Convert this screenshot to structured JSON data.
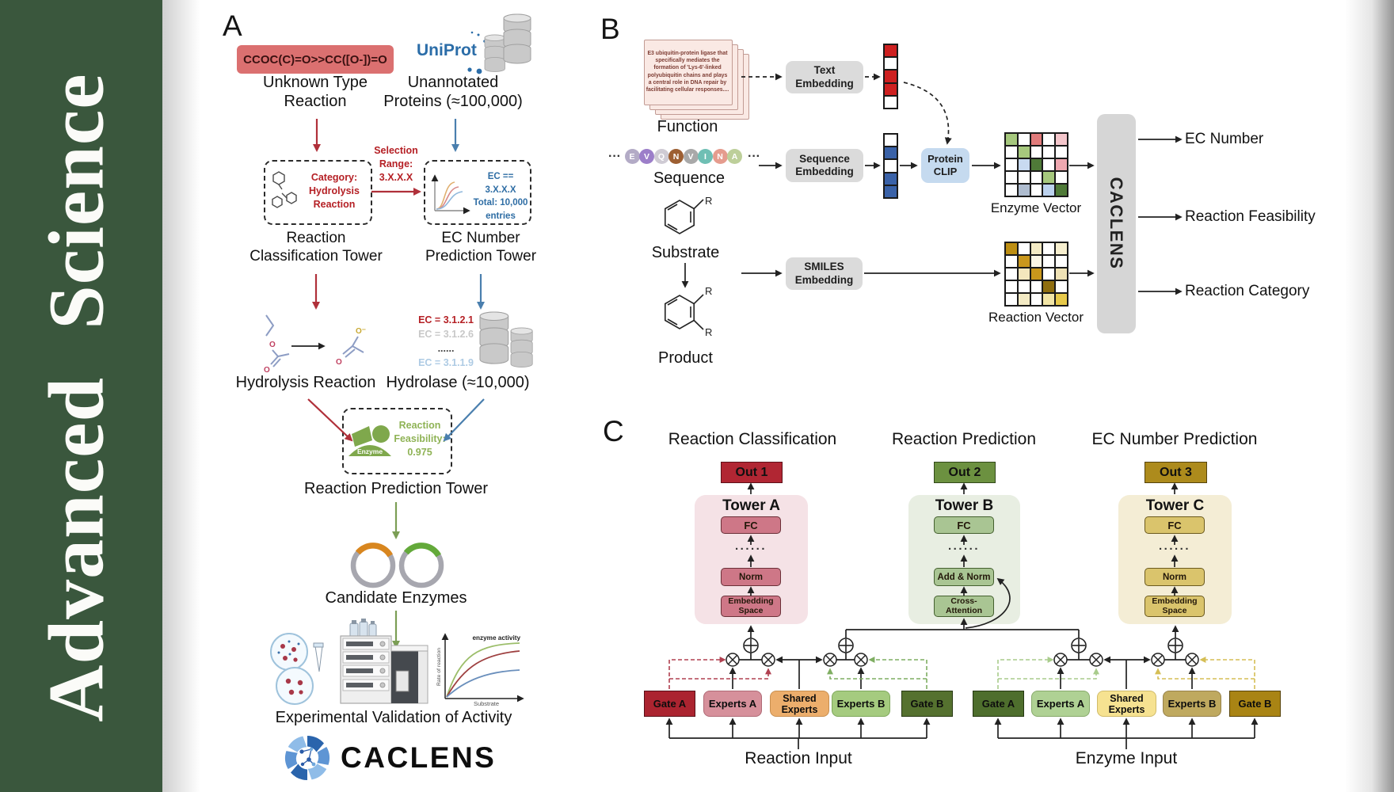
{
  "journal": {
    "word1": "Advanced",
    "word2": "Science"
  },
  "colors": {
    "sidebar_green": "#3A573D",
    "red_accent": "#B52025",
    "blue_accent": "#2E6DA4",
    "green_accent": "#7FA84C"
  },
  "panelA": {
    "label": "A",
    "smiles": "CCOC(C)=O>>CC([O-])=O",
    "uniprot": "UniProt",
    "unknown_line1": "Unknown Type",
    "unknown_line2": "Reaction",
    "unannotated_line1": "Unannotated",
    "unannotated_line2": "Proteins (≈100,000)",
    "category_line1": "Category:",
    "category_line2": "Hydrolysis",
    "category_line3": "Reaction",
    "selection_line1": "Selection",
    "selection_line2": "Range:",
    "selection_line3": "3.X.X.X",
    "ec_line1": "EC == 3.X.X.X",
    "ec_line2": "Total: 10,000",
    "ec_line3": "entries",
    "tower1_line1": "Reaction",
    "tower1_line2": "Classification Tower",
    "tower2_line1": "EC Number",
    "tower2_line2": "Prediction Tower",
    "hydrolysis_label": "Hydrolysis Reaction",
    "ec_list": [
      "EC = 3.1.2.1",
      "EC = 3.1.2.6",
      "......",
      "EC = 3.1.1.9"
    ],
    "hydrolase_label": "Hydrolase (≈10,000)",
    "enzyme_label": "Enzyme",
    "feasibility_line1": "Reaction",
    "feasibility_line2": "Feasibility:",
    "feasibility_line3": "0.975",
    "tower3_label": "Reaction Prediction Tower",
    "candidates_label": "Candidate Enzymes",
    "activity_chart": {
      "type": "line",
      "ylabel": "Rate of reaction",
      "xlabel": "Substrate",
      "annotation": "enzyme activity",
      "series": [
        "green-high",
        "darkred-medium",
        "blue-low"
      ]
    },
    "validation_label": "Experimental Validation of Activity",
    "logo_text": "CACLENS"
  },
  "panelB": {
    "label": "B",
    "function_card_text": "E3 ubiquitin-protein ligase that specifically mediates the formation of 'Lys-6'-linked polyubiquitin chains and plays a central role in DNA repair by facilitating cellular responses....",
    "function_label": "Function",
    "ellipsis": "···",
    "sequence_letters": [
      {
        "ch": "E",
        "color": "#B3ABC6"
      },
      {
        "ch": "V",
        "color": "#9C7EC9"
      },
      {
        "ch": "Q",
        "color": "#CFCBD4"
      },
      {
        "ch": "N",
        "color": "#9D5F32"
      },
      {
        "ch": "V",
        "color": "#A9A9A9"
      },
      {
        "ch": "I",
        "color": "#6FBFB4"
      },
      {
        "ch": "N",
        "color": "#E59C8E"
      },
      {
        "ch": "A",
        "color": "#BDCF9A"
      }
    ],
    "sequence_label": "Sequence",
    "substrate_label": "Substrate",
    "product_label": "Product",
    "r_label": "R",
    "text_embedding_line1": "Text",
    "text_embedding_line2": "Embedding",
    "sequence_embedding_line1": "Sequence",
    "sequence_embedding_line2": "Embedding",
    "smiles_embedding_line1": "SMILES",
    "smiles_embedding_line2": "Embedding",
    "protein_clip_line1": "Protein",
    "protein_clip_line2": "CLIP",
    "text_vector": [
      [
        "#CE2020"
      ],
      [
        "#FFFFFF"
      ],
      [
        "#CE2020"
      ],
      [
        "#CE2020"
      ],
      [
        "#FFFFFF"
      ]
    ],
    "seq_vector": [
      [
        "#FFFFFF"
      ],
      [
        "#3A62A8"
      ],
      [
        "#FFFFFF"
      ],
      [
        "#3A62A8"
      ],
      [
        "#3A62A8"
      ]
    ],
    "enzyme_grid": [
      [
        "#A6C87D",
        "#FFFFFF",
        "#E07B7B",
        "#FFFFFF",
        "#F4C6CB"
      ],
      [
        "#FFFFFF",
        "#A6C87D",
        "#FFFFFF",
        "#FFFFFF",
        "#FFFFFF"
      ],
      [
        "#FFFFFF",
        "#C8DAF0",
        "#4F7A38",
        "#FFFFFF",
        "#EFA8B0"
      ],
      [
        "#FFFFFF",
        "#FFFFFF",
        "#FFFFFF",
        "#A6C87D",
        "#FFFFFF"
      ],
      [
        "#FFFFFF",
        "#AEBCCF",
        "#FFFFFF",
        "#BCD2EE",
        "#4F7A38"
      ]
    ],
    "reaction_grid": [
      [
        "#BD8E12",
        "#FFFFFF",
        "#F3EAC4",
        "#FFFFFF",
        "#F7EFCF"
      ],
      [
        "#FFFFFF",
        "#C9971C",
        "#FBF6E6",
        "#FFFFFF",
        "#FFFFFF"
      ],
      [
        "#FFFFFF",
        "#F3E7BD",
        "#C9971C",
        "#FFFFFF",
        "#EFE2B5"
      ],
      [
        "#FFFFFF",
        "#FFFFFF",
        "#FFFFFF",
        "#8F6E10",
        "#FFFFFF"
      ],
      [
        "#FFFFFF",
        "#F3EAC4",
        "#FFFFFF",
        "#F2E5A6",
        "#E7C94A"
      ]
    ],
    "enzyme_vector_label": "Enzyme Vector",
    "reaction_vector_label": "Reaction Vector",
    "caclens_label": "CACLENS",
    "outputs": [
      "EC Number",
      "Reaction Feasibility",
      "Reaction Category"
    ]
  },
  "panelC": {
    "label": "C",
    "sections": [
      {
        "title": "Reaction Classification",
        "out": "Out 1",
        "tower": "Tower A",
        "fc": "FC",
        "dots": "......",
        "l3": "Norm",
        "l4_line1": "Embedding",
        "l4_line2": "Space"
      },
      {
        "title": "Reaction Prediction",
        "out": "Out 2",
        "tower": "Tower B",
        "fc": "FC",
        "dots": "......",
        "l3": "Add & Norm",
        "l4_line1": "Cross-",
        "l4_line2": "Attention"
      },
      {
        "title": "EC Number Prediction",
        "out": "Out 3",
        "tower": "Tower C",
        "fc": "FC",
        "dots": "......",
        "l3": "Norm",
        "l4_line1": "Embedding",
        "l4_line2": "Space"
      }
    ],
    "groups": [
      {
        "label": "Reaction Input",
        "gate_a": "Gate A",
        "experts_a": "Experts A",
        "shared": "Shared Experts",
        "experts_b": "Experts B",
        "gate_b": "Gate B"
      },
      {
        "label": "Enzyme Input",
        "gate_a": "Gate A",
        "experts_a": "Experts A",
        "shared": "Shared Experts",
        "experts_b": "Experts B",
        "gate_b": "Gate B"
      }
    ]
  }
}
